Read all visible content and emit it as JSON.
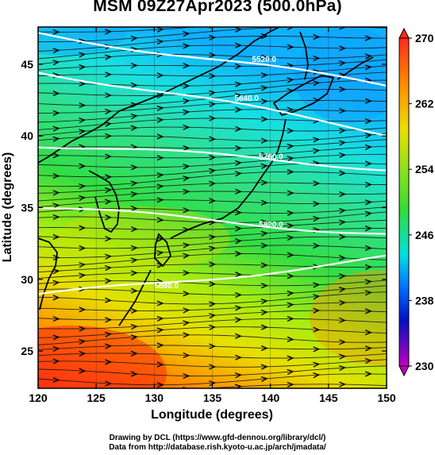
{
  "title": "MSM 09Z27Apr2023 (500.0hPa)",
  "x_axis": {
    "label": "Longitude (degrees)",
    "range": [
      120,
      150
    ],
    "ticks": [
      "120",
      "125",
      "130",
      "135",
      "140",
      "145",
      "150"
    ]
  },
  "y_axis": {
    "label": "Latitude  (degrees)",
    "range": [
      22.4,
      47.6
    ],
    "ticks": [
      "25",
      "30",
      "35",
      "40",
      "45"
    ]
  },
  "colorbar": {
    "range": [
      230,
      270
    ],
    "tick_labels": [
      "270",
      "262",
      "254",
      "246",
      "238",
      "230"
    ],
    "colors": [
      "#ff2a1a",
      "#ff8c00",
      "#e8e000",
      "#33dd33",
      "#00e0e0",
      "#0070ff",
      "#0010c0",
      "#c000c0"
    ]
  },
  "contours": [
    {
      "label": "5520.0",
      "lat_at_120": 47.2,
      "lat_at_150": 43.5
    },
    {
      "label": "5640.0",
      "lat_at_120": 44.6,
      "lat_at_150": 40.2
    },
    {
      "label": "5760.0",
      "lat_at_120": 39.4,
      "lat_at_150": 37.8
    },
    {
      "label": "5820.0",
      "lat_at_120": 35.0,
      "lat_at_150": 33.2
    },
    {
      "label": "5880.0",
      "lat_at_120": 28.8,
      "lat_at_150": 31.5
    }
  ],
  "visible_contour_labels": [
    "5640.0",
    "5520.0",
    "5880.0",
    "5760.0",
    "5820.0"
  ],
  "footer": {
    "line1": "Drawing by DCL (https://www.gfd-dennou.org/library/dcl/)",
    "line2": "Data from http://database.rish.kyoto-u.ac.jp/arch/jmadata/"
  }
}
